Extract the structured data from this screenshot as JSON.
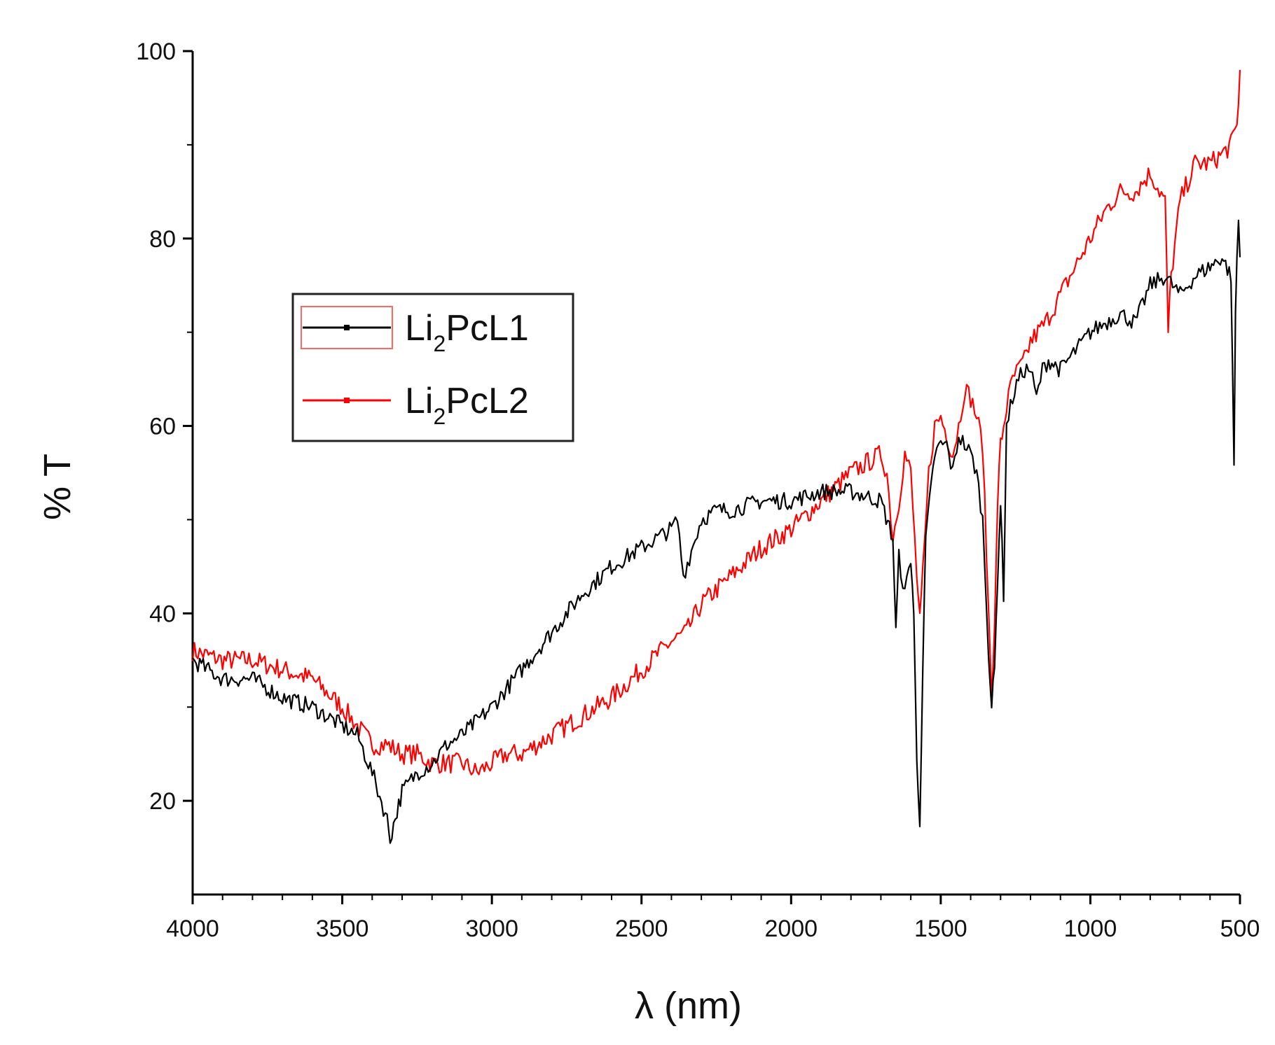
{
  "chart_data": {
    "type": "line",
    "xlabel": "λ (nm)",
    "ylabel": "% T",
    "xlim": [
      4000,
      500
    ],
    "ylim": [
      10,
      100
    ],
    "x_reversed": true,
    "grid": false,
    "legend_placement": "upper-left-center",
    "x_ticks": [
      4000,
      3500,
      3000,
      2500,
      2000,
      1500,
      1000,
      500
    ],
    "y_ticks": [
      20,
      40,
      60,
      80,
      100
    ],
    "series": [
      {
        "name": "Li2PcL1",
        "legend": {
          "base": "Li",
          "sub": "2",
          "rest": "PcL1"
        },
        "color": "#000000",
        "x": [
          4000,
          3900,
          3800,
          3700,
          3600,
          3500,
          3450,
          3400,
          3350,
          3340,
          3300,
          3250,
          3200,
          3150,
          3100,
          3000,
          2900,
          2800,
          2700,
          2600,
          2500,
          2400,
          2380,
          2360,
          2340,
          2320,
          2300,
          2250,
          2200,
          2100,
          2000,
          1900,
          1800,
          1700,
          1660,
          1650,
          1640,
          1620,
          1600,
          1590,
          1580,
          1570,
          1560,
          1550,
          1520,
          1500,
          1480,
          1460,
          1440,
          1420,
          1400,
          1380,
          1360,
          1340,
          1330,
          1320,
          1310,
          1300,
          1290,
          1280,
          1260,
          1240,
          1220,
          1200,
          1180,
          1160,
          1140,
          1100,
          1050,
          1000,
          950,
          900,
          850,
          800,
          750,
          700,
          650,
          600,
          560,
          530,
          520,
          515,
          510,
          505,
          500
        ],
        "y": [
          35,
          33,
          33,
          31,
          30,
          28,
          27,
          23,
          18,
          16,
          21,
          23,
          24,
          26,
          27,
          30,
          34,
          38,
          42,
          45,
          47,
          49,
          50,
          44,
          46,
          48,
          50,
          51,
          51,
          52,
          52,
          53,
          53,
          52,
          48,
          38,
          46,
          42,
          46,
          40,
          24,
          18,
          34,
          48,
          57,
          58,
          58,
          55,
          59,
          58,
          57,
          55,
          50,
          36,
          30,
          34,
          44,
          52,
          42,
          60,
          63,
          65,
          66,
          66,
          63,
          66,
          67,
          66,
          68,
          70,
          71,
          72,
          71,
          75,
          76,
          74,
          76,
          77,
          78,
          76,
          56,
          72,
          78,
          82,
          78
        ]
      },
      {
        "name": "Li2PcL2",
        "legend": {
          "base": "Li",
          "sub": "2",
          "rest": "PcL2"
        },
        "color": "#ff0000",
        "x": [
          4000,
          3900,
          3800,
          3700,
          3600,
          3500,
          3450,
          3400,
          3350,
          3300,
          3250,
          3200,
          3150,
          3100,
          3050,
          3000,
          2950,
          2900,
          2800,
          2700,
          2600,
          2500,
          2400,
          2350,
          2300,
          2200,
          2100,
          2000,
          1900,
          1800,
          1750,
          1700,
          1680,
          1660,
          1640,
          1620,
          1600,
          1580,
          1570,
          1560,
          1540,
          1520,
          1500,
          1480,
          1460,
          1440,
          1420,
          1400,
          1380,
          1360,
          1340,
          1330,
          1320,
          1310,
          1300,
          1290,
          1280,
          1260,
          1240,
          1220,
          1200,
          1150,
          1100,
          1050,
          1000,
          950,
          900,
          850,
          800,
          750,
          740,
          730,
          700,
          650,
          600,
          560,
          530,
          510,
          500
        ],
        "y": [
          36,
          35,
          35,
          34,
          33,
          30,
          28,
          26,
          26,
          25,
          25,
          24,
          24,
          24,
          23,
          24,
          25,
          25,
          27,
          29,
          31,
          34,
          37,
          38,
          41,
          44,
          47,
          49,
          52,
          55,
          56,
          57,
          55,
          48,
          52,
          57,
          55,
          44,
          39,
          44,
          55,
          60,
          61,
          59,
          57,
          60,
          64,
          63,
          61,
          58,
          40,
          32,
          38,
          52,
          58,
          60,
          62,
          65,
          66,
          67,
          69,
          71,
          74,
          77,
          80,
          83,
          85,
          85,
          87,
          84,
          70,
          76,
          84,
          88,
          88,
          89,
          90,
          92,
          98
        ]
      }
    ]
  }
}
